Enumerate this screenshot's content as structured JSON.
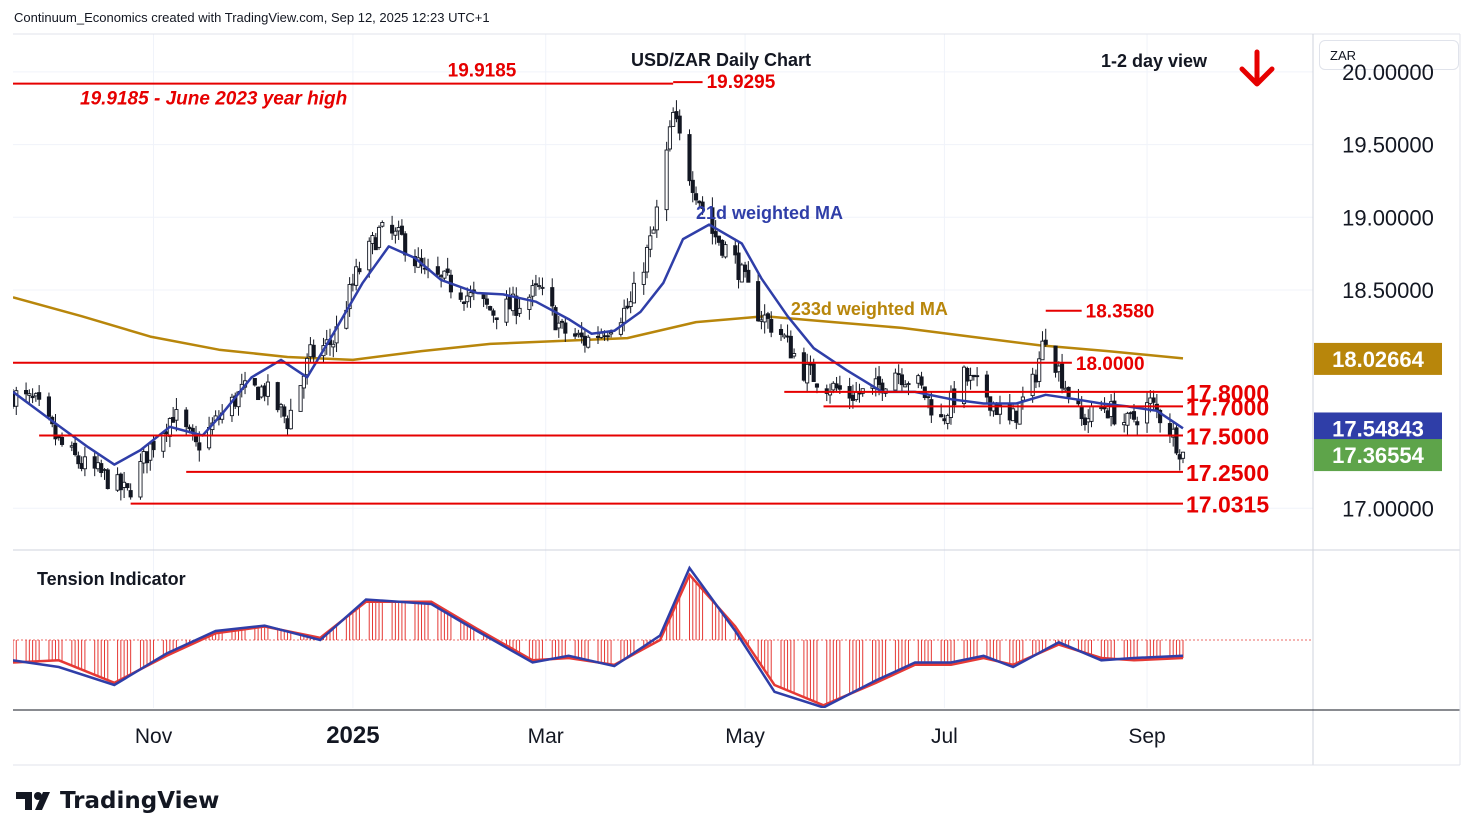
{
  "header": {
    "attribution": "Continuum_Economics created with TradingView.com, Sep 12, 2025 12:23 UTC+1",
    "currency": "ZAR",
    "brand": "TradingView"
  },
  "colors": {
    "up": "#ffffff",
    "down": "#131722",
    "level": "#e60000",
    "ma21": "#2f3ea8",
    "ma233": "#b8860b",
    "last_price": "#5ea44a",
    "ma21_tag": "#2f3ea8",
    "ma233_tag": "#b8860b",
    "tension_fast": "#2f3ea8",
    "tension_slow": "#e53935"
  },
  "chart_data": {
    "type": "candlestick",
    "title": "USD/ZAR Daily Chart",
    "view": "1-2 day view",
    "view_direction_icon": "arrow-down-icon",
    "ylim": [
      16.72,
      20.26
    ],
    "y_ticks": [
      {
        "value": 20.0,
        "label": "20.00000"
      },
      {
        "value": 19.5,
        "label": "19.50000"
      },
      {
        "value": 19.0,
        "label": "19.00000"
      },
      {
        "value": 18.5,
        "label": "18.50000"
      },
      {
        "value": 17.0,
        "label": "17.00000"
      }
    ],
    "x_ticks": [
      {
        "date": "2024-11-01",
        "label": "Nov"
      },
      {
        "date": "2025-01-01",
        "label": "2025"
      },
      {
        "date": "2025-03-01",
        "label": "Mar"
      },
      {
        "date": "2025-05-01",
        "label": "May"
      },
      {
        "date": "2025-07-01",
        "label": "Jul"
      },
      {
        "date": "2025-09-01",
        "label": "Sep"
      }
    ],
    "date_range": [
      "2024-09-19",
      "2025-09-12"
    ],
    "levels": [
      {
        "value": 19.9185,
        "label": "19.9185",
        "note": "19.9185 - June 2023 year high",
        "from": "2024-09-19",
        "to": "2025-04-09"
      },
      {
        "value": 19.9295,
        "label": "19.9295",
        "from": "2025-04-09",
        "to": "2025-04-18"
      },
      {
        "value": 18.358,
        "label": "18.3580",
        "from": "2025-08-01",
        "to": "2025-08-12"
      },
      {
        "value": 18.0,
        "label": "18.0000",
        "from": "2024-09-19",
        "to": "2025-08-09"
      },
      {
        "value": 17.8,
        "label": "17.8000",
        "from": "2025-05-13",
        "to": "2025-09-12"
      },
      {
        "value": 17.7,
        "label": "17.7000",
        "from": "2025-05-25",
        "to": "2025-09-12"
      },
      {
        "value": 17.5,
        "label": "17.5000",
        "from": "2024-09-27",
        "to": "2025-09-12"
      },
      {
        "value": 17.25,
        "label": "17.2500",
        "from": "2024-11-11",
        "to": "2025-09-12"
      },
      {
        "value": 17.0315,
        "label": "17.0315",
        "from": "2024-10-25",
        "to": "2025-09-12"
      }
    ],
    "price_tags": [
      {
        "value": 18.02664,
        "label": "18.02664",
        "kind": "ma233"
      },
      {
        "value": 17.54843,
        "label": "17.54843",
        "kind": "ma21"
      },
      {
        "value": 17.36554,
        "label": "17.36554",
        "kind": "last"
      }
    ],
    "annotations": [
      {
        "text": "21d weighted MA",
        "date": "2025-04-16",
        "value": 18.99,
        "color": "ma21"
      },
      {
        "text": "233d weighted MA",
        "date": "2025-05-15",
        "value": 18.33,
        "color": "ma233"
      }
    ],
    "series": [
      {
        "name": "21d weighted MA",
        "color": "ma21",
        "points": [
          [
            "2024-09-19",
            17.8
          ],
          [
            "2024-10-01",
            17.6
          ],
          [
            "2024-10-12",
            17.42
          ],
          [
            "2024-10-20",
            17.3
          ],
          [
            "2024-10-28",
            17.4
          ],
          [
            "2024-11-06",
            17.56
          ],
          [
            "2024-11-16",
            17.5
          ],
          [
            "2024-11-22",
            17.65
          ],
          [
            "2024-12-01",
            17.9
          ],
          [
            "2024-12-10",
            18.02
          ],
          [
            "2024-12-18",
            17.9
          ],
          [
            "2024-12-26",
            18.2
          ],
          [
            "2025-01-04",
            18.55
          ],
          [
            "2025-01-12",
            18.8
          ],
          [
            "2025-01-20",
            18.72
          ],
          [
            "2025-01-28",
            18.57
          ],
          [
            "2025-02-08",
            18.48
          ],
          [
            "2025-02-16",
            18.47
          ],
          [
            "2025-02-26",
            18.42
          ],
          [
            "2025-03-08",
            18.3
          ],
          [
            "2025-03-15",
            18.2
          ],
          [
            "2025-03-22",
            18.22
          ],
          [
            "2025-03-30",
            18.35
          ],
          [
            "2025-04-06",
            18.55
          ],
          [
            "2025-04-12",
            18.85
          ],
          [
            "2025-04-20",
            18.95
          ],
          [
            "2025-04-30",
            18.82
          ],
          [
            "2025-05-06",
            18.58
          ],
          [
            "2025-05-14",
            18.32
          ],
          [
            "2025-05-22",
            18.1
          ],
          [
            "2025-06-01",
            17.95
          ],
          [
            "2025-06-12",
            17.8
          ],
          [
            "2025-06-22",
            17.8
          ],
          [
            "2025-07-03",
            17.75
          ],
          [
            "2025-07-13",
            17.72
          ],
          [
            "2025-07-23",
            17.72
          ],
          [
            "2025-08-01",
            17.78
          ],
          [
            "2025-08-10",
            17.75
          ],
          [
            "2025-08-18",
            17.72
          ],
          [
            "2025-08-26",
            17.7
          ],
          [
            "2025-09-04",
            17.67
          ],
          [
            "2025-09-12",
            17.55
          ]
        ]
      },
      {
        "name": "233d weighted MA",
        "color": "ma233",
        "points": [
          [
            "2024-09-19",
            18.45
          ],
          [
            "2024-10-10",
            18.32
          ],
          [
            "2024-10-31",
            18.18
          ],
          [
            "2024-11-21",
            18.09
          ],
          [
            "2024-12-12",
            18.04
          ],
          [
            "2025-01-01",
            18.02
          ],
          [
            "2025-01-22",
            18.08
          ],
          [
            "2025-02-12",
            18.13
          ],
          [
            "2025-03-05",
            18.15
          ],
          [
            "2025-03-26",
            18.17
          ],
          [
            "2025-04-16",
            18.28
          ],
          [
            "2025-05-07",
            18.32
          ],
          [
            "2025-05-28",
            18.28
          ],
          [
            "2025-06-18",
            18.24
          ],
          [
            "2025-07-09",
            18.18
          ],
          [
            "2025-07-30",
            18.12
          ],
          [
            "2025-08-20",
            18.08
          ],
          [
            "2025-09-12",
            18.03
          ]
        ]
      }
    ],
    "price_path": [
      [
        "2024-09-19",
        17.78
      ],
      [
        "2024-09-26",
        17.72
      ],
      [
        "2024-10-03",
        17.45
      ],
      [
        "2024-10-10",
        17.3
      ],
      [
        "2024-10-17",
        17.22
      ],
      [
        "2024-10-24",
        17.1
      ],
      [
        "2024-10-31",
        17.42
      ],
      [
        "2024-11-07",
        17.65
      ],
      [
        "2024-11-14",
        17.42
      ],
      [
        "2024-11-21",
        17.62
      ],
      [
        "2024-11-28",
        17.8
      ],
      [
        "2024-12-05",
        17.82
      ],
      [
        "2024-12-12",
        17.6
      ],
      [
        "2024-12-19",
        18.05
      ],
      [
        "2024-12-26",
        18.15
      ],
      [
        "2025-01-02",
        18.6
      ],
      [
        "2025-01-09",
        18.9
      ],
      [
        "2025-01-16",
        18.85
      ],
      [
        "2025-01-23",
        18.6
      ],
      [
        "2025-01-30",
        18.55
      ],
      [
        "2025-02-06",
        18.45
      ],
      [
        "2025-02-13",
        18.35
      ],
      [
        "2025-02-20",
        18.4
      ],
      [
        "2025-02-27",
        18.5
      ],
      [
        "2025-03-06",
        18.22
      ],
      [
        "2025-03-13",
        18.15
      ],
      [
        "2025-03-20",
        18.25
      ],
      [
        "2025-03-27",
        18.4
      ],
      [
        "2025-04-03",
        18.9
      ],
      [
        "2025-04-09",
        19.7
      ],
      [
        "2025-04-14",
        19.3
      ],
      [
        "2025-04-21",
        18.9
      ],
      [
        "2025-04-28",
        18.7
      ],
      [
        "2025-05-05",
        18.35
      ],
      [
        "2025-05-12",
        18.2
      ],
      [
        "2025-05-19",
        17.95
      ],
      [
        "2025-05-26",
        17.85
      ],
      [
        "2025-06-02",
        17.78
      ],
      [
        "2025-06-09",
        17.8
      ],
      [
        "2025-06-16",
        17.95
      ],
      [
        "2025-06-23",
        17.85
      ],
      [
        "2025-06-30",
        17.6
      ],
      [
        "2025-07-07",
        17.9
      ],
      [
        "2025-07-14",
        17.78
      ],
      [
        "2025-07-21",
        17.58
      ],
      [
        "2025-07-28",
        17.85
      ],
      [
        "2025-08-01",
        18.2
      ],
      [
        "2025-08-05",
        17.95
      ],
      [
        "2025-08-12",
        17.6
      ],
      [
        "2025-08-19",
        17.7
      ],
      [
        "2025-08-26",
        17.58
      ],
      [
        "2025-09-02",
        17.72
      ],
      [
        "2025-09-08",
        17.55
      ],
      [
        "2025-09-12",
        17.37
      ]
    ],
    "tension_indicator": {
      "title": "Tension Indicator",
      "fast": [
        [
          "2024-09-19",
          -0.45
        ],
        [
          "2024-10-03",
          -0.6
        ],
        [
          "2024-10-20",
          -1.0
        ],
        [
          "2024-11-05",
          -0.3
        ],
        [
          "2024-11-20",
          0.2
        ],
        [
          "2024-12-05",
          0.32
        ],
        [
          "2024-12-22",
          0.0
        ],
        [
          "2025-01-05",
          0.9
        ],
        [
          "2025-01-25",
          0.8
        ],
        [
          "2025-02-08",
          0.2
        ],
        [
          "2025-02-25",
          -0.5
        ],
        [
          "2025-03-08",
          -0.35
        ],
        [
          "2025-03-22",
          -0.58
        ],
        [
          "2025-04-05",
          0.1
        ],
        [
          "2025-04-14",
          1.6
        ],
        [
          "2025-04-28",
          0.2
        ],
        [
          "2025-05-10",
          -1.15
        ],
        [
          "2025-05-25",
          -1.5
        ],
        [
          "2025-06-10",
          -0.9
        ],
        [
          "2025-06-22",
          -0.5
        ],
        [
          "2025-07-03",
          -0.5
        ],
        [
          "2025-07-13",
          -0.35
        ],
        [
          "2025-07-22",
          -0.6
        ],
        [
          "2025-08-05",
          -0.05
        ],
        [
          "2025-08-18",
          -0.45
        ],
        [
          "2025-08-28",
          -0.4
        ],
        [
          "2025-09-12",
          -0.35
        ]
      ],
      "slow": [
        [
          "2024-09-19",
          -0.5
        ],
        [
          "2024-10-03",
          -0.45
        ],
        [
          "2024-10-20",
          -0.95
        ],
        [
          "2024-11-05",
          -0.35
        ],
        [
          "2024-11-20",
          0.15
        ],
        [
          "2024-12-05",
          0.3
        ],
        [
          "2024-12-22",
          0.05
        ],
        [
          "2025-01-05",
          0.85
        ],
        [
          "2025-01-25",
          0.85
        ],
        [
          "2025-02-08",
          0.25
        ],
        [
          "2025-02-25",
          -0.45
        ],
        [
          "2025-03-08",
          -0.4
        ],
        [
          "2025-03-22",
          -0.55
        ],
        [
          "2025-04-05",
          0.0
        ],
        [
          "2025-04-14",
          1.45
        ],
        [
          "2025-04-28",
          0.3
        ],
        [
          "2025-05-10",
          -1.0
        ],
        [
          "2025-05-25",
          -1.45
        ],
        [
          "2025-06-10",
          -0.95
        ],
        [
          "2025-06-22",
          -0.55
        ],
        [
          "2025-07-03",
          -0.55
        ],
        [
          "2025-07-13",
          -0.4
        ],
        [
          "2025-07-22",
          -0.55
        ],
        [
          "2025-08-05",
          -0.1
        ],
        [
          "2025-08-18",
          -0.4
        ],
        [
          "2025-08-28",
          -0.45
        ],
        [
          "2025-09-12",
          -0.4
        ]
      ]
    }
  }
}
